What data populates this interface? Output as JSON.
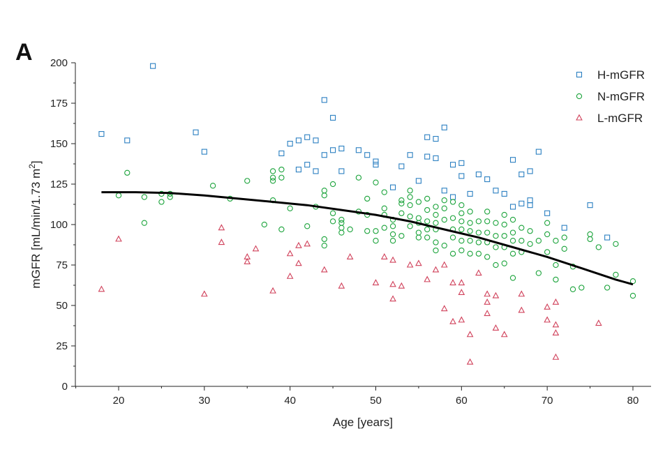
{
  "panel_label": "A",
  "chart_data": {
    "type": "scatter",
    "title": "",
    "xlabel": "Age [years]",
    "ylabel_main": "mGFR [mL/min/1.73 m",
    "ylabel_sup": "2",
    "ylabel_close": "]",
    "xlim": [
      15,
      82
    ],
    "ylim": [
      0,
      200
    ],
    "xticks": [
      20,
      30,
      40,
      50,
      60,
      70,
      80
    ],
    "yticks": [
      0,
      25,
      50,
      75,
      100,
      125,
      150,
      175,
      200
    ],
    "legend_position": "top-right",
    "grid": false,
    "series": [
      {
        "name": "H-mGFR",
        "marker": "square",
        "color": "#2a7fc1",
        "x": [
          18,
          21,
          24,
          29,
          30,
          39,
          40,
          41,
          41,
          42,
          42,
          43,
          43,
          44,
          44,
          45,
          45,
          46,
          46,
          48,
          49,
          50,
          50,
          52,
          53,
          54,
          55,
          56,
          56,
          57,
          57,
          58,
          58,
          59,
          59,
          60,
          60,
          61,
          62,
          63,
          64,
          65,
          66,
          66,
          67,
          67,
          68,
          68,
          68,
          69,
          70,
          72,
          75,
          77
        ],
        "y": [
          156,
          152,
          198,
          157,
          145,
          144,
          150,
          152,
          134,
          154,
          137,
          152,
          133,
          177,
          143,
          166,
          146,
          147,
          133,
          146,
          143,
          139,
          137,
          123,
          136,
          143,
          127,
          154,
          142,
          153,
          141,
          160,
          121,
          137,
          117,
          138,
          130,
          119,
          131,
          128,
          121,
          119,
          140,
          111,
          131,
          113,
          133,
          115,
          112,
          145,
          107,
          98,
          112,
          92
        ]
      },
      {
        "name": "N-mGFR",
        "marker": "circle",
        "color": "#1aa33a",
        "x": [
          20,
          21,
          23,
          23,
          25,
          25,
          26,
          26,
          31,
          33,
          35,
          37,
          38,
          38,
          38,
          38,
          39,
          39,
          39,
          40,
          42,
          43,
          44,
          44,
          44,
          44,
          45,
          45,
          45,
          46,
          46,
          46,
          46,
          47,
          48,
          48,
          49,
          49,
          49,
          50,
          50,
          50,
          51,
          51,
          51,
          51,
          52,
          52,
          52,
          52,
          53,
          53,
          53,
          53,
          54,
          54,
          54,
          54,
          54,
          55,
          55,
          55,
          55,
          55,
          56,
          56,
          56,
          56,
          56,
          57,
          57,
          57,
          57,
          57,
          57,
          58,
          58,
          58,
          58,
          59,
          59,
          59,
          59,
          59,
          60,
          60,
          60,
          60,
          60,
          60,
          61,
          61,
          61,
          61,
          61,
          62,
          62,
          62,
          62,
          63,
          63,
          63,
          63,
          63,
          64,
          64,
          64,
          64,
          65,
          65,
          65,
          65,
          65,
          66,
          66,
          66,
          66,
          66,
          67,
          67,
          67,
          68,
          68,
          69,
          69,
          70,
          70,
          70,
          71,
          71,
          71,
          72,
          72,
          73,
          73,
          74,
          75,
          75,
          76,
          77,
          78,
          78,
          80,
          80
        ],
        "y": [
          118,
          132,
          117,
          101,
          119,
          114,
          119,
          117,
          124,
          116,
          127,
          100,
          133,
          129,
          127,
          115,
          134,
          129,
          97,
          110,
          99,
          111,
          121,
          118,
          91,
          87,
          107,
          102,
          125,
          103,
          101,
          98,
          95,
          97,
          108,
          129,
          116,
          106,
          96,
          96,
          90,
          126,
          110,
          106,
          120,
          98,
          103,
          99,
          94,
          90,
          115,
          113,
          107,
          93,
          121,
          117,
          112,
          105,
          99,
          114,
          104,
          101,
          95,
          92,
          116,
          109,
          102,
          97,
          92,
          111,
          106,
          101,
          97,
          89,
          84,
          115,
          110,
          103,
          87,
          114,
          104,
          97,
          92,
          82,
          112,
          107,
          102,
          97,
          90,
          84,
          108,
          101,
          96,
          90,
          82,
          102,
          95,
          89,
          82,
          108,
          102,
          95,
          89,
          80,
          101,
          93,
          86,
          75,
          106,
          100,
          93,
          86,
          76,
          103,
          95,
          90,
          82,
          67,
          98,
          90,
          83,
          96,
          88,
          90,
          70,
          101,
          94,
          83,
          90,
          75,
          66,
          92,
          85,
          74,
          60,
          61,
          94,
          91,
          86,
          61,
          88,
          69,
          65,
          56
        ]
      },
      {
        "name": "L-mGFR",
        "marker": "triangle",
        "color": "#d0405a",
        "x": [
          18,
          20,
          30,
          32,
          32,
          35,
          35,
          36,
          38,
          40,
          40,
          41,
          41,
          42,
          44,
          46,
          47,
          50,
          51,
          52,
          52,
          52,
          53,
          54,
          55,
          56,
          57,
          58,
          58,
          59,
          59,
          60,
          60,
          60,
          61,
          61,
          62,
          63,
          63,
          63,
          64,
          64,
          65,
          67,
          67,
          70,
          70,
          71,
          71,
          71,
          71,
          76
        ],
        "y": [
          60,
          91,
          57,
          98,
          89,
          80,
          77,
          85,
          59,
          82,
          68,
          87,
          76,
          88,
          72,
          62,
          80,
          64,
          80,
          78,
          63,
          54,
          62,
          75,
          76,
          66,
          72,
          75,
          48,
          64,
          40,
          64,
          58,
          41,
          32,
          15,
          70,
          57,
          52,
          45,
          36,
          56,
          32,
          57,
          47,
          49,
          41,
          52,
          38,
          33,
          18,
          39
        ]
      }
    ],
    "fit_line": {
      "name": "",
      "x": [
        18,
        22,
        26,
        30,
        34,
        38,
        42,
        46,
        50,
        54,
        58,
        62,
        66,
        70,
        74,
        78,
        80
      ],
      "y": [
        120,
        120,
        119.5,
        118,
        116,
        114,
        112,
        109,
        106,
        102,
        97,
        92,
        86,
        80,
        73,
        66,
        63
      ]
    }
  }
}
